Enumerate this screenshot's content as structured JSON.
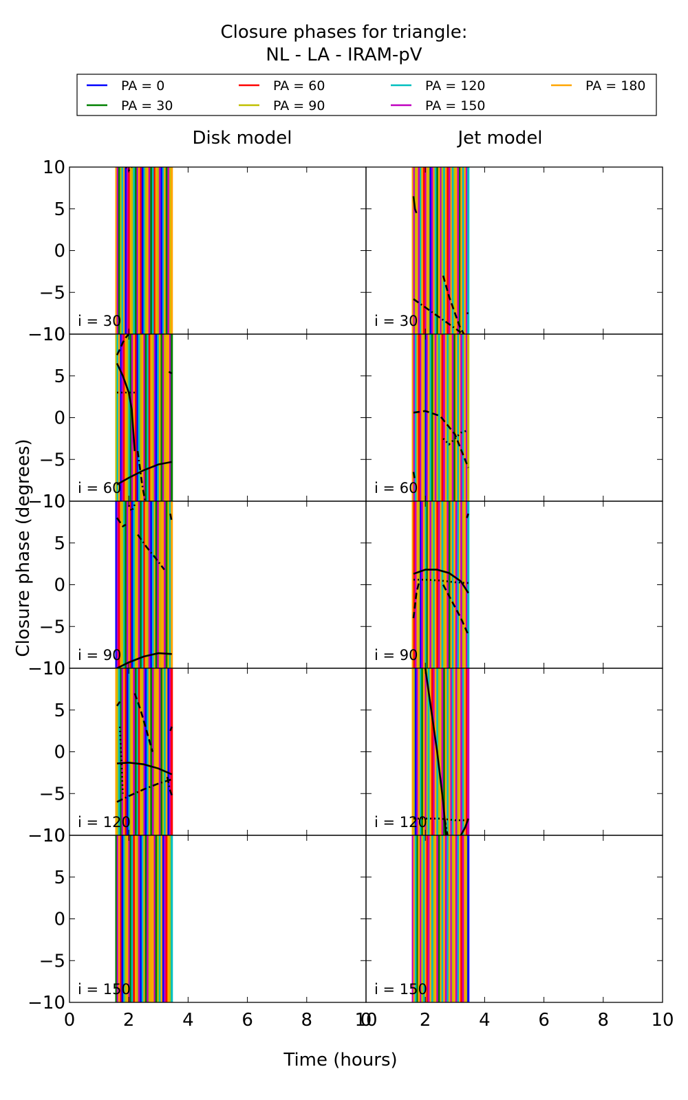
{
  "figure": {
    "title_line1": "Closure phases for triangle:",
    "title_line2": "NL - LA - IRAM-pV",
    "ylabel": "Closure phase (degrees)",
    "xlabel": "Time (hours)",
    "column_titles": [
      "Disk model",
      "Jet model"
    ]
  },
  "legend": {
    "placement": "top",
    "items": [
      {
        "label": "PA = 0",
        "color": "#0000ff"
      },
      {
        "label": "PA = 30",
        "color": "#008000"
      },
      {
        "label": "PA = 60",
        "color": "#ff0000"
      },
      {
        "label": "PA = 90",
        "color": "#bfbf00"
      },
      {
        "label": "PA = 120",
        "color": "#00bfbf"
      },
      {
        "label": "PA = 150",
        "color": "#bf00bf"
      },
      {
        "label": "PA = 180",
        "color": "#ffa500"
      }
    ]
  },
  "chart_data": {
    "type": "line",
    "grid": false,
    "xlim": [
      0,
      10
    ],
    "ylim": [
      -10,
      10
    ],
    "xticks": [
      0,
      2,
      4,
      6,
      8,
      10
    ],
    "yticks": [
      -10,
      -5,
      0,
      5,
      10
    ],
    "xtick_labels": [
      "0",
      "2",
      "4",
      "6",
      "8",
      "10"
    ],
    "ytick_labels": [
      "−10",
      "−5",
      "0",
      "5",
      "10"
    ],
    "row_labels": [
      "i = 30",
      "i = 60",
      "i = 90",
      "i = 120",
      "i = 150"
    ],
    "columns": [
      {
        "title": "Disk model",
        "band": {
          "x_range": [
            1.55,
            3.45
          ],
          "stripe_x": [
            1.58,
            1.63,
            1.68,
            1.74,
            1.79,
            1.85,
            1.9,
            1.96,
            2.02,
            2.07,
            2.12,
            2.18,
            2.24,
            2.3,
            2.35,
            2.41,
            2.47,
            2.53,
            2.58,
            2.64,
            2.7,
            2.76,
            2.82,
            2.88,
            2.93,
            2.99,
            3.05,
            3.11,
            3.17,
            3.22,
            3.28,
            3.34,
            3.4,
            3.45
          ],
          "stripe_pa": [
            180,
            150,
            30,
            90,
            120,
            180,
            0,
            150,
            60,
            180,
            90,
            120,
            30,
            150,
            180,
            60,
            0,
            120,
            90,
            180,
            150,
            30,
            120,
            60,
            180,
            90,
            150,
            0,
            120,
            180,
            30,
            150,
            90,
            180
          ]
        },
        "panels": [
          {
            "label": "i = 30",
            "curves": [
              {
                "style": "dotted",
                "x": [
                  1.9,
                  2.0,
                  2.1
                ],
                "y": [
                  10,
                  9.6,
                  10
                ]
              }
            ]
          },
          {
            "label": "i = 60",
            "curves": [
              {
                "style": "solid",
                "x": [
                  1.6,
                  2.0,
                  2.5,
                  3.0,
                  3.45
                ],
                "y": [
                  -8,
                  -7.2,
                  -6.3,
                  -5.6,
                  -5.3
                ]
              },
              {
                "style": "solid",
                "x": [
                  1.6,
                  1.8,
                  2.0,
                  2.1,
                  2.2
                ],
                "y": [
                  6.5,
                  5,
                  3,
                  1,
                  -4
                ]
              },
              {
                "style": "dashed",
                "x": [
                  1.6,
                  1.7,
                  1.8,
                  1.9,
                  2.0
                ],
                "y": [
                  7.5,
                  8.2,
                  9,
                  9.6,
                  10
                ]
              },
              {
                "style": "dotted",
                "x": [
                  1.6,
                  1.9,
                  2.2
                ],
                "y": [
                  3,
                  3,
                  3
                ]
              },
              {
                "style": "dashdot",
                "x": [
                  2.3,
                  2.45,
                  2.55
                ],
                "y": [
                  -4,
                  -8,
                  -10
                ]
              },
              {
                "style": "dashdot",
                "x": [
                  3.35,
                  3.45
                ],
                "y": [
                  5.5,
                  5.3
                ]
              }
            ]
          },
          {
            "label": "i = 90",
            "curves": [
              {
                "style": "solid",
                "x": [
                  1.6,
                  2.0,
                  2.5,
                  3.0,
                  3.45
                ],
                "y": [
                  -10,
                  -9.3,
                  -8.6,
                  -8.2,
                  -8.3
                ]
              },
              {
                "style": "dashed",
                "x": [
                  1.6,
                  1.7,
                  1.8,
                  1.9
                ],
                "y": [
                  8,
                  7.5,
                  7,
                  7.2
                ]
              },
              {
                "style": "dashdot",
                "x": [
                  2.3,
                  2.6,
                  2.9,
                  3.2
                ],
                "y": [
                  6,
                  4.5,
                  3.2,
                  1.8
                ]
              },
              {
                "style": "dotted",
                "x": [
                  2.0,
                  2.1,
                  2.2
                ],
                "y": [
                  9.5,
                  8.8,
                  9.6
                ]
              },
              {
                "style": "dashdot",
                "x": [
                  3.4,
                  3.45
                ],
                "y": [
                  8.5,
                  7.5
                ]
              }
            ]
          },
          {
            "label": "i = 120",
            "curves": [
              {
                "style": "solid",
                "x": [
                  1.6,
                  2.0,
                  2.5,
                  3.0,
                  3.45
                ],
                "y": [
                  -1.4,
                  -1.3,
                  -1.5,
                  -2,
                  -2.7
                ]
              },
              {
                "style": "dashdot",
                "x": [
                  1.6,
                  2.0,
                  2.5,
                  3.0,
                  3.45
                ],
                "y": [
                  -6,
                  -5.3,
                  -4.5,
                  -3.8,
                  -3.3
                ]
              },
              {
                "style": "dashed",
                "x": [
                  1.6,
                  1.7
                ],
                "y": [
                  5.5,
                  6
                ]
              },
              {
                "style": "dashed",
                "x": [
                  2.2,
                  2.4,
                  2.6,
                  2.8
                ],
                "y": [
                  7,
                  5,
                  2.5,
                  0
                ]
              },
              {
                "style": "dotted",
                "x": [
                  1.7,
                  1.75,
                  1.8
                ],
                "y": [
                  3,
                  -1,
                  -5
                ]
              },
              {
                "style": "dashdot",
                "x": [
                  3.3,
                  3.38,
                  3.45
                ],
                "y": [
                  -3,
                  -4.5,
                  -5.2
                ]
              },
              {
                "style": "dashed",
                "x": [
                  3.4,
                  3.45
                ],
                "y": [
                  2.5,
                  3
                ]
              }
            ]
          },
          {
            "label": "i = 150",
            "curves": []
          }
        ]
      },
      {
        "title": "Jet model",
        "band": {
          "x_range": [
            1.55,
            3.45
          ],
          "stripe_x": [
            1.58,
            1.63,
            1.68,
            1.74,
            1.79,
            1.85,
            1.9,
            1.96,
            2.02,
            2.07,
            2.12,
            2.18,
            2.24,
            2.3,
            2.35,
            2.41,
            2.47,
            2.53,
            2.58,
            2.64,
            2.7,
            2.76,
            2.82,
            2.88,
            2.93,
            2.99,
            3.05,
            3.11,
            3.17,
            3.22,
            3.28,
            3.34,
            3.4,
            3.45
          ],
          "stripe_pa": [
            180,
            150,
            90,
            180,
            150,
            120,
            180,
            60,
            150,
            180,
            90,
            0,
            150,
            180,
            120,
            30,
            180,
            150,
            90,
            120,
            180,
            60,
            150,
            180,
            120,
            90,
            180,
            150,
            30,
            180,
            120,
            180,
            150,
            120
          ]
        },
        "panels": [
          {
            "label": "i = 30",
            "curves": [
              {
                "style": "solid",
                "x": [
                  1.6,
                  1.65,
                  1.7
                ],
                "y": [
                  6.5,
                  5,
                  4.5
                ]
              },
              {
                "style": "dashed",
                "x": [
                  2.6,
                  2.8,
                  3.0,
                  3.15,
                  3.3
                ],
                "y": [
                  -3,
                  -5.5,
                  -7.5,
                  -9,
                  -10
                ]
              },
              {
                "style": "dashdot",
                "x": [
                  1.6,
                  2.0,
                  2.4,
                  2.8,
                  3.2
                ],
                "y": [
                  -5.8,
                  -6.8,
                  -7.8,
                  -8.8,
                  -9.8
                ]
              },
              {
                "style": "dashdot",
                "x": [
                  3.4,
                  3.45
                ],
                "y": [
                  -7.5,
                  -7.5
                ]
              }
            ]
          },
          {
            "label": "i = 60",
            "curves": [
              {
                "style": "dashed",
                "x": [
                  1.6,
                  2.0,
                  2.5,
                  3.0,
                  3.45
                ],
                "y": [
                  0.6,
                  0.8,
                  0.2,
                  -2,
                  -6
                ]
              },
              {
                "style": "dotted",
                "x": [
                  2.6,
                  2.8,
                  3.0,
                  3.2,
                  3.45
                ],
                "y": [
                  -2.5,
                  -3.2,
                  -2.5,
                  -1.8,
                  -1.5
                ]
              },
              {
                "style": "dashdot",
                "x": [
                  1.6,
                  1.65
                ],
                "y": [
                  -6.5,
                  -7.5
                ]
              }
            ]
          },
          {
            "label": "i = 90",
            "curves": [
              {
                "style": "solid",
                "x": [
                  1.6,
                  2.0,
                  2.4,
                  2.8,
                  3.2,
                  3.45
                ],
                "y": [
                  1.3,
                  1.8,
                  1.8,
                  1.4,
                  0.4,
                  -1
                ]
              },
              {
                "style": "dashed",
                "x": [
                  2.6,
                  2.9,
                  3.2,
                  3.45
                ],
                "y": [
                  0,
                  -2,
                  -4,
                  -6
                ]
              },
              {
                "style": "dotted",
                "x": [
                  1.6,
                  2.0,
                  2.5,
                  3.0,
                  3.45
                ],
                "y": [
                  0.6,
                  0.6,
                  0.5,
                  0.3,
                  0.2
                ]
              },
              {
                "style": "dashed",
                "x": [
                  1.6,
                  1.7,
                  1.8
                ],
                "y": [
                  -4,
                  -1,
                  0.5
                ]
              },
              {
                "style": "dashdot",
                "x": [
                  3.4,
                  3.45
                ],
                "y": [
                  8,
                  8.5
                ]
              }
            ]
          },
          {
            "label": "i = 120",
            "curves": [
              {
                "style": "solid",
                "x": [
                  2.0,
                  2.2,
                  2.4,
                  2.6,
                  2.7
                ],
                "y": [
                  10,
                  5,
                  0,
                  -6,
                  -10
                ]
              },
              {
                "style": "dotted",
                "x": [
                  1.6,
                  2.0,
                  2.5,
                  3.0,
                  3.45
                ],
                "y": [
                  -8,
                  -8,
                  -8,
                  -8.2,
                  -8.2
                ]
              },
              {
                "style": "solid",
                "x": [
                  3.2,
                  3.35,
                  3.45
                ],
                "y": [
                  -10,
                  -9,
                  -8
                ]
              },
              {
                "style": "dashdot",
                "x": [
                  2.65,
                  2.7,
                  2.75
                ],
                "y": [
                  -8,
                  -9,
                  -10
                ]
              }
            ]
          },
          {
            "label": "i = 150",
            "curves": []
          }
        ]
      }
    ]
  }
}
